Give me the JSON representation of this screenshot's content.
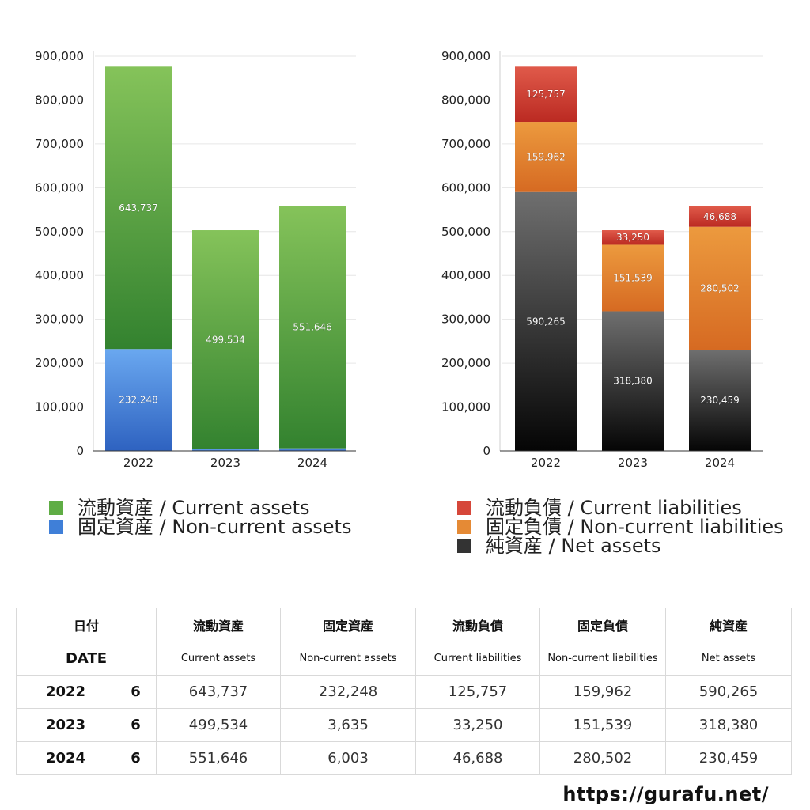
{
  "chart_data": [
    {
      "type": "bar",
      "stacked": true,
      "categories": [
        "2022",
        "2023",
        "2024"
      ],
      "ylim": [
        0,
        900000
      ],
      "yticks": [
        "0",
        "100,000",
        "200,000",
        "300,000",
        "400,000",
        "500,000",
        "600,000",
        "700,000",
        "800,000",
        "900,000"
      ],
      "grid": true,
      "series": [
        {
          "name": "固定資産 / Non-current assets",
          "values": [
            232248,
            3635,
            6003
          ],
          "labels": [
            "232,248",
            "3,635",
            "6,003"
          ],
          "color_top": "#6aa8f0",
          "color_bottom": "#2e62c0"
        },
        {
          "name": "流動資産 / Current assets",
          "values": [
            643737,
            499534,
            551646
          ],
          "labels": [
            "643,737",
            "499,534",
            "551,646"
          ],
          "color_top": "#85c35a",
          "color_bottom": "#33822f"
        }
      ]
    },
    {
      "type": "bar",
      "stacked": true,
      "categories": [
        "2022",
        "2023",
        "2024"
      ],
      "ylim": [
        0,
        900000
      ],
      "yticks": [
        "0",
        "100,000",
        "200,000",
        "300,000",
        "400,000",
        "500,000",
        "600,000",
        "700,000",
        "800,000",
        "900,000"
      ],
      "grid": true,
      "series": [
        {
          "name": "純資産 / Net assets",
          "values": [
            590265,
            318380,
            230459
          ],
          "labels": [
            "590,265",
            "318,380",
            "230,459"
          ],
          "color_top": "#6f6f6f",
          "color_bottom": "#050505"
        },
        {
          "name": "固定負債 / Non-current liabilities",
          "values": [
            159962,
            151539,
            280502
          ],
          "labels": [
            "159,962",
            "151,539",
            "280,502"
          ],
          "color_top": "#ec9a3e",
          "color_bottom": "#d66a22"
        },
        {
          "name": "流動負債 / Current liabilities",
          "values": [
            125757,
            33250,
            46688
          ],
          "labels": [
            "125,757",
            "33,250",
            "46,688"
          ],
          "color_top": "#e05a4a",
          "color_bottom": "#bb2a22"
        }
      ]
    }
  ],
  "legend_left": [
    {
      "label": "流動資産 / Current assets",
      "color": "#5fad45"
    },
    {
      "label": "固定資産 / Non-current assets",
      "color": "#3f7fd8"
    }
  ],
  "legend_right": [
    {
      "label": "流動負債 / Current liabilities",
      "color": "#d6473a"
    },
    {
      "label": "固定負債 / Non-current liabilities",
      "color": "#e58a35"
    },
    {
      "label": "純資産 / Net assets",
      "color": "#333333"
    }
  ],
  "table": {
    "date_jp": "日付",
    "date_en": "DATE",
    "headers_jp": [
      "流動資産",
      "固定資産",
      "流動負債",
      "固定負債",
      "純資産"
    ],
    "headers_en": [
      "Current assets",
      "Non-current assets",
      "Current liabilities",
      "Non-current liabilities",
      "Net assets"
    ],
    "rows": [
      {
        "year": "2022",
        "month": "6",
        "values": [
          "643,737",
          "232,248",
          "125,757",
          "159,962",
          "590,265"
        ]
      },
      {
        "year": "2023",
        "month": "6",
        "values": [
          "499,534",
          "3,635",
          "33,250",
          "151,539",
          "318,380"
        ]
      },
      {
        "year": "2024",
        "month": "6",
        "values": [
          "551,646",
          "6,003",
          "46,688",
          "280,502",
          "230,459"
        ]
      }
    ]
  },
  "source": "https://gurafu.net/"
}
